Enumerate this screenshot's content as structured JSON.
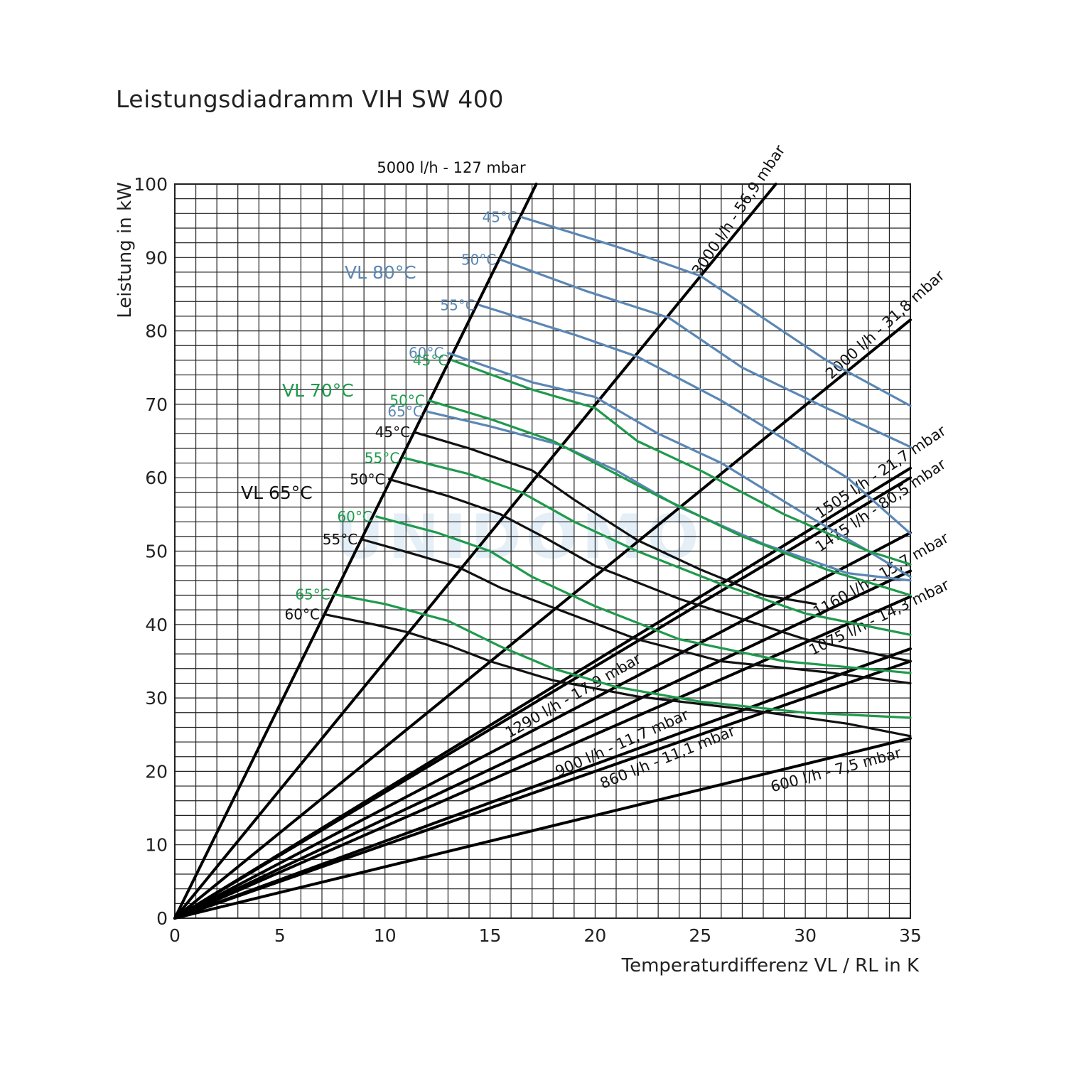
{
  "chart_data": {
    "type": "line",
    "title": "Leistungsdiadramm VIH SW 400",
    "xlabel": "Temperaturdifferenz VL / RL in K",
    "ylabel": "Leistung in kW",
    "xlim": [
      0,
      35
    ],
    "ylim": [
      0,
      100
    ],
    "x_ticks": [
      0,
      5,
      10,
      15,
      20,
      25,
      30,
      35
    ],
    "y_ticks": [
      0,
      10,
      20,
      30,
      40,
      50,
      60,
      70,
      80,
      90,
      100
    ],
    "grid": true,
    "watermark": "UNIDOMO",
    "colors": {
      "vl80": "#5b87b5",
      "vl70": "#1f9a4c",
      "vl65": "#111111"
    },
    "flow_lines": [
      {
        "name": "5000 l/h - 127 mbar",
        "x_end": 17.2,
        "y_end": 100
      },
      {
        "name": "3000 l/h - 56,9 mbar",
        "x_end": 28.6,
        "y_end": 100
      },
      {
        "name": "2000 l/h - 31,8 mbar",
        "x_end": 35,
        "y_end": 81.5
      },
      {
        "name": "1505 l/h - 21,7 mbar",
        "x_end": 35,
        "y_end": 61.3
      },
      {
        "name": "1475 l/h - 80,5 mbar",
        "x_end": 35,
        "y_end": 60.0
      },
      {
        "name": "1290 l/h - 17,9 mbar",
        "x_end": 35,
        "y_end": 52.5
      },
      {
        "name": "1160 l/h - 15,7 mbar",
        "x_end": 35,
        "y_end": 47.3
      },
      {
        "name": "1075 l/h - 14,3 mbar",
        "x_end": 35,
        "y_end": 43.8
      },
      {
        "name": "900 l/h - 11,7 mbar",
        "x_end": 35,
        "y_end": 36.7
      },
      {
        "name": "860 l/h - 11,1 mbar",
        "x_end": 35,
        "y_end": 35.0
      },
      {
        "name": "600 l/h - 7,5 mbar",
        "x_end": 35,
        "y_end": 24.5
      }
    ],
    "groups": [
      {
        "name": "VL 80°C",
        "color": "#5b87b5",
        "series": [
          {
            "name": "45°C",
            "points": [
              [
                16.5,
                95.5
              ],
              [
                21,
                91.5
              ],
              [
                25,
                87.5
              ],
              [
                31,
                76
              ],
              [
                35,
                69.8
              ]
            ]
          },
          {
            "name": "50°C",
            "points": [
              [
                15.5,
                89.7
              ],
              [
                19.5,
                85.5
              ],
              [
                23.5,
                81.8
              ],
              [
                27,
                75
              ],
              [
                31,
                69.5
              ],
              [
                35,
                64.2
              ]
            ]
          },
          {
            "name": "55°C",
            "points": [
              [
                14.5,
                83.5
              ],
              [
                19,
                79.5
              ],
              [
                22,
                76.5
              ],
              [
                26,
                70.5
              ],
              [
                32,
                60
              ],
              [
                35,
                52.4
              ]
            ]
          },
          {
            "name": "60°C",
            "points": [
              [
                13,
                77
              ],
              [
                17,
                73
              ],
              [
                20,
                71
              ],
              [
                23,
                66
              ],
              [
                26,
                62
              ],
              [
                30,
                55
              ],
              [
                33,
                50
              ],
              [
                35,
                46.5
              ]
            ]
          },
          {
            "name": "65°C",
            "points": [
              [
                12,
                69
              ],
              [
                15,
                67
              ],
              [
                18.3,
                64.5
              ],
              [
                21,
                61
              ],
              [
                24,
                56
              ],
              [
                28,
                51
              ],
              [
                32,
                47
              ],
              [
                35,
                46
              ]
            ]
          }
        ]
      },
      {
        "name": "VL 70°C",
        "color": "#1f9a4c",
        "series": [
          {
            "name": "45°C",
            "points": [
              [
                13.2,
                76
              ],
              [
                17,
                72
              ],
              [
                20,
                69.5
              ],
              [
                22,
                65
              ],
              [
                25,
                61
              ],
              [
                29,
                55
              ],
              [
                33,
                50
              ],
              [
                35,
                48.2
              ]
            ]
          },
          {
            "name": "50°C",
            "points": [
              [
                12.1,
                70.5
              ],
              [
                15,
                68
              ],
              [
                18,
                65
              ],
              [
                20,
                62
              ],
              [
                23,
                57.5
              ],
              [
                27,
                52
              ],
              [
                31,
                47.5
              ],
              [
                35,
                44
              ]
            ]
          },
          {
            "name": "55°C",
            "points": [
              [
                10.9,
                62.7
              ],
              [
                14,
                60.5
              ],
              [
                16.5,
                58
              ],
              [
                19,
                54
              ],
              [
                22,
                50
              ],
              [
                26,
                45.5
              ],
              [
                30,
                41.5
              ],
              [
                35,
                38.6
              ]
            ]
          },
          {
            "name": "60°C",
            "points": [
              [
                9.6,
                54.7
              ],
              [
                12.5,
                52.5
              ],
              [
                15,
                50
              ],
              [
                17,
                46.5
              ],
              [
                20,
                42.5
              ],
              [
                24,
                38
              ],
              [
                29,
                35
              ],
              [
                35,
                33.4
              ]
            ]
          },
          {
            "name": "65°C",
            "points": [
              [
                7.6,
                44.1
              ],
              [
                10,
                42.8
              ],
              [
                13,
                40.5
              ],
              [
                15.5,
                37
              ],
              [
                18,
                34
              ],
              [
                21,
                31.5
              ],
              [
                25,
                29.5
              ],
              [
                30,
                28
              ],
              [
                35,
                27.3
              ]
            ]
          }
        ]
      },
      {
        "name": "VL 65°C",
        "color": "#111111",
        "series": [
          {
            "name": "45°C",
            "points": [
              [
                11.4,
                66.2
              ],
              [
                14,
                64
              ],
              [
                17,
                61
              ],
              [
                19,
                57
              ],
              [
                22,
                51.5
              ],
              [
                25,
                47.5
              ],
              [
                28,
                44
              ],
              [
                30.5,
                42.8
              ]
            ]
          },
          {
            "name": "50°C",
            "points": [
              [
                10.2,
                59.8
              ],
              [
                13,
                57.5
              ],
              [
                15.5,
                55
              ],
              [
                17.5,
                52
              ],
              [
                20,
                48
              ],
              [
                24,
                43.5
              ],
              [
                30,
                38
              ],
              [
                35,
                35
              ]
            ]
          },
          {
            "name": "55°C",
            "points": [
              [
                8.9,
                51.6
              ],
              [
                11.5,
                49.5
              ],
              [
                13.5,
                47.8
              ],
              [
                15.5,
                45
              ],
              [
                18,
                42.3
              ],
              [
                22,
                38
              ],
              [
                26,
                35
              ],
              [
                31,
                33.5
              ],
              [
                35,
                32
              ]
            ]
          },
          {
            "name": "60°C",
            "points": [
              [
                7.1,
                41.4
              ],
              [
                9.5,
                40
              ],
              [
                11,
                39
              ],
              [
                13,
                37.2
              ],
              [
                15,
                35
              ],
              [
                18,
                32.4
              ],
              [
                22,
                30.2
              ],
              [
                27,
                28.5
              ],
              [
                32,
                26.5
              ],
              [
                35,
                24.8
              ]
            ]
          }
        ]
      }
    ]
  }
}
